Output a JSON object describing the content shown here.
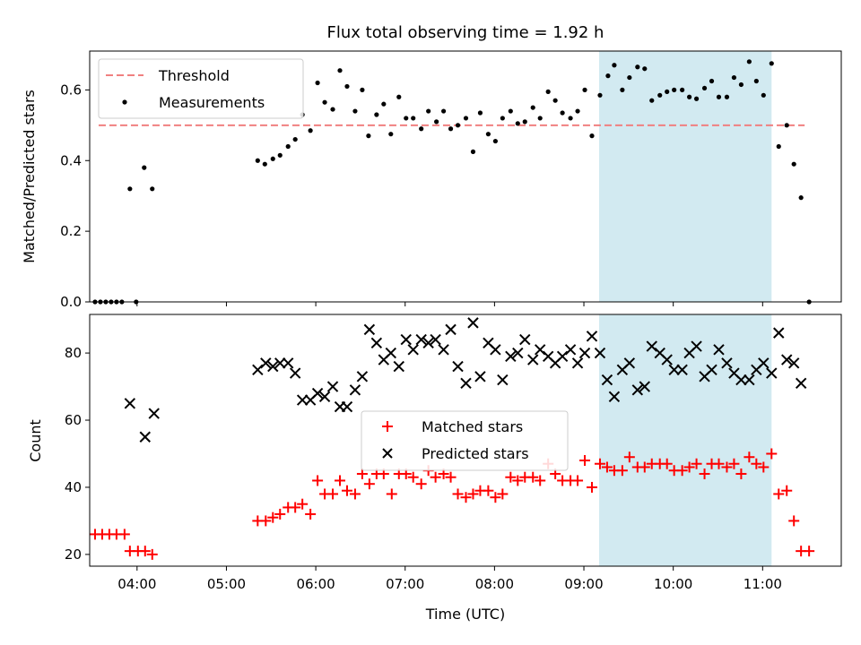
{
  "chart_data": [
    {
      "type": "scatter",
      "title": "Flux total observing time = 1.92 h",
      "ylabel": "Matched/Predicted stars",
      "ylim": [
        0,
        0.71
      ],
      "yticks": [
        0.0,
        0.2,
        0.4,
        0.6
      ],
      "ytick_labels": [
        "0.0",
        "0.2",
        "0.4",
        "0.6"
      ],
      "xlim": [
        3.47,
        11.88
      ],
      "shaded_region": {
        "x_start": 9.17,
        "x_end": 11.1,
        "color": "#add8e6"
      },
      "threshold": {
        "name": "Threshold",
        "y": 0.5,
        "x_start": 3.57,
        "x_end": 11.47,
        "color": "#f08080"
      },
      "legend_position": "top-left",
      "series": [
        {
          "name": "Measurements",
          "color": "#000000",
          "marker": "dot",
          "points": [
            [
              3.53,
              0.0
            ],
            [
              3.59,
              0.0
            ],
            [
              3.65,
              0.0
            ],
            [
              3.71,
              0.0
            ],
            [
              3.77,
              0.0
            ],
            [
              3.83,
              0.0
            ],
            [
              3.92,
              0.32
            ],
            [
              3.99,
              0.0
            ],
            [
              4.08,
              0.38
            ],
            [
              4.17,
              0.32
            ],
            [
              5.35,
              0.4
            ],
            [
              5.43,
              0.39
            ],
            [
              5.52,
              0.405
            ],
            [
              5.6,
              0.415
            ],
            [
              5.69,
              0.44
            ],
            [
              5.77,
              0.46
            ],
            [
              5.85,
              0.53
            ],
            [
              5.94,
              0.485
            ],
            [
              6.02,
              0.62
            ],
            [
              6.1,
              0.565
            ],
            [
              6.19,
              0.545
            ],
            [
              6.27,
              0.655
            ],
            [
              6.35,
              0.61
            ],
            [
              6.44,
              0.54
            ],
            [
              6.52,
              0.6
            ],
            [
              6.59,
              0.47
            ],
            [
              6.68,
              0.53
            ],
            [
              6.76,
              0.56
            ],
            [
              6.84,
              0.475
            ],
            [
              6.93,
              0.58
            ],
            [
              7.01,
              0.52
            ],
            [
              7.09,
              0.52
            ],
            [
              7.18,
              0.49
            ],
            [
              7.26,
              0.54
            ],
            [
              7.35,
              0.51
            ],
            [
              7.43,
              0.54
            ],
            [
              7.51,
              0.49
            ],
            [
              7.59,
              0.5
            ],
            [
              7.68,
              0.52
            ],
            [
              7.76,
              0.425
            ],
            [
              7.84,
              0.535
            ],
            [
              7.93,
              0.475
            ],
            [
              8.01,
              0.455
            ],
            [
              8.09,
              0.52
            ],
            [
              8.18,
              0.54
            ],
            [
              8.26,
              0.505
            ],
            [
              8.34,
              0.51
            ],
            [
              8.43,
              0.55
            ],
            [
              8.51,
              0.52
            ],
            [
              8.6,
              0.595
            ],
            [
              8.68,
              0.57
            ],
            [
              8.76,
              0.535
            ],
            [
              8.85,
              0.52
            ],
            [
              8.93,
              0.54
            ],
            [
              9.01,
              0.6
            ],
            [
              9.09,
              0.47
            ],
            [
              9.18,
              0.585
            ],
            [
              9.27,
              0.64
            ],
            [
              9.34,
              0.67
            ],
            [
              9.43,
              0.6
            ],
            [
              9.51,
              0.635
            ],
            [
              9.6,
              0.665
            ],
            [
              9.68,
              0.66
            ],
            [
              9.76,
              0.57
            ],
            [
              9.85,
              0.585
            ],
            [
              9.93,
              0.595
            ],
            [
              10.01,
              0.6
            ],
            [
              10.1,
              0.6
            ],
            [
              10.18,
              0.58
            ],
            [
              10.26,
              0.575
            ],
            [
              10.35,
              0.605
            ],
            [
              10.43,
              0.625
            ],
            [
              10.51,
              0.58
            ],
            [
              10.6,
              0.58
            ],
            [
              10.68,
              0.635
            ],
            [
              10.76,
              0.615
            ],
            [
              10.85,
              0.68
            ],
            [
              10.93,
              0.625
            ],
            [
              11.01,
              0.585
            ],
            [
              11.1,
              0.675
            ],
            [
              11.18,
              0.44
            ],
            [
              11.27,
              0.5
            ],
            [
              11.35,
              0.39
            ],
            [
              11.43,
              0.295
            ],
            [
              11.52,
              0.0
            ]
          ]
        }
      ]
    },
    {
      "type": "scatter",
      "xlabel": "Time (UTC)",
      "ylabel": "Count",
      "ylim": [
        16.5,
        91.5
      ],
      "yticks": [
        20,
        40,
        60,
        80
      ],
      "ytick_labels": [
        "20",
        "40",
        "60",
        "80"
      ],
      "xlim": [
        3.47,
        11.88
      ],
      "xticks": [
        4,
        5,
        6,
        7,
        8,
        9,
        10,
        11
      ],
      "xtick_labels": [
        "04:00",
        "05:00",
        "06:00",
        "07:00",
        "08:00",
        "09:00",
        "10:00",
        "11:00"
      ],
      "shaded_region": {
        "x_start": 9.17,
        "x_end": 11.1,
        "color": "#add8e6"
      },
      "legend_position": "center",
      "series": [
        {
          "name": "Matched stars",
          "color": "#ff0000",
          "marker": "plus",
          "points": [
            [
              3.53,
              26
            ],
            [
              3.61,
              26
            ],
            [
              3.69,
              26
            ],
            [
              3.77,
              26
            ],
            [
              3.86,
              26
            ],
            [
              3.92,
              21
            ],
            [
              4.01,
              21
            ],
            [
              4.09,
              21
            ],
            [
              4.17,
              20
            ],
            [
              5.35,
              30
            ],
            [
              5.44,
              30
            ],
            [
              5.52,
              31
            ],
            [
              5.6,
              32
            ],
            [
              5.69,
              34
            ],
            [
              5.77,
              34
            ],
            [
              5.85,
              35
            ],
            [
              5.94,
              32
            ],
            [
              6.02,
              42
            ],
            [
              6.1,
              38
            ],
            [
              6.19,
              38
            ],
            [
              6.27,
              42
            ],
            [
              6.35,
              39
            ],
            [
              6.44,
              38
            ],
            [
              6.52,
              44
            ],
            [
              6.6,
              41
            ],
            [
              6.68,
              44
            ],
            [
              6.76,
              44
            ],
            [
              6.85,
              38
            ],
            [
              6.93,
              44
            ],
            [
              7.01,
              44
            ],
            [
              7.09,
              43
            ],
            [
              7.18,
              41
            ],
            [
              7.26,
              45
            ],
            [
              7.34,
              43
            ],
            [
              7.43,
              44
            ],
            [
              7.51,
              43
            ],
            [
              7.59,
              38
            ],
            [
              7.68,
              37
            ],
            [
              7.76,
              38
            ],
            [
              7.84,
              39
            ],
            [
              7.93,
              39
            ],
            [
              8.01,
              37
            ],
            [
              8.09,
              38
            ],
            [
              8.18,
              43
            ],
            [
              8.26,
              42
            ],
            [
              8.34,
              43
            ],
            [
              8.43,
              43
            ],
            [
              8.51,
              42
            ],
            [
              8.6,
              47
            ],
            [
              8.68,
              44
            ],
            [
              8.76,
              42
            ],
            [
              8.85,
              42
            ],
            [
              8.93,
              42
            ],
            [
              9.01,
              48
            ],
            [
              9.09,
              40
            ],
            [
              9.18,
              47
            ],
            [
              9.26,
              46
            ],
            [
              9.34,
              45
            ],
            [
              9.43,
              45
            ],
            [
              9.51,
              49
            ],
            [
              9.6,
              46
            ],
            [
              9.68,
              46
            ],
            [
              9.76,
              47
            ],
            [
              9.85,
              47
            ],
            [
              9.93,
              47
            ],
            [
              10.01,
              45
            ],
            [
              10.1,
              45
            ],
            [
              10.18,
              46
            ],
            [
              10.26,
              47
            ],
            [
              10.35,
              44
            ],
            [
              10.43,
              47
            ],
            [
              10.51,
              47
            ],
            [
              10.6,
              46
            ],
            [
              10.68,
              47
            ],
            [
              10.76,
              44
            ],
            [
              10.85,
              49
            ],
            [
              10.93,
              47
            ],
            [
              11.01,
              46
            ],
            [
              11.1,
              50
            ],
            [
              11.18,
              38
            ],
            [
              11.27,
              39
            ],
            [
              11.35,
              30
            ],
            [
              11.43,
              21
            ],
            [
              11.52,
              21
            ]
          ]
        },
        {
          "name": "Predicted stars",
          "color": "#000000",
          "marker": "x",
          "points": [
            [
              3.92,
              65
            ],
            [
              4.09,
              55
            ],
            [
              4.19,
              62
            ],
            [
              5.35,
              75
            ],
            [
              5.44,
              77
            ],
            [
              5.52,
              76
            ],
            [
              5.6,
              77
            ],
            [
              5.69,
              77
            ],
            [
              5.77,
              74
            ],
            [
              5.85,
              66
            ],
            [
              5.94,
              66
            ],
            [
              6.02,
              68
            ],
            [
              6.1,
              67
            ],
            [
              6.19,
              70
            ],
            [
              6.27,
              64
            ],
            [
              6.35,
              64
            ],
            [
              6.44,
              69
            ],
            [
              6.52,
              73
            ],
            [
              6.6,
              87
            ],
            [
              6.68,
              83
            ],
            [
              6.76,
              78
            ],
            [
              6.84,
              80
            ],
            [
              6.93,
              76
            ],
            [
              7.01,
              84
            ],
            [
              7.09,
              81
            ],
            [
              7.18,
              84
            ],
            [
              7.26,
              83
            ],
            [
              7.34,
              84
            ],
            [
              7.43,
              81
            ],
            [
              7.51,
              87
            ],
            [
              7.59,
              76
            ],
            [
              7.68,
              71
            ],
            [
              7.76,
              89
            ],
            [
              7.84,
              73
            ],
            [
              7.93,
              83
            ],
            [
              8.01,
              81
            ],
            [
              8.09,
              72
            ],
            [
              8.18,
              79
            ],
            [
              8.26,
              80
            ],
            [
              8.34,
              84
            ],
            [
              8.43,
              78
            ],
            [
              8.51,
              81
            ],
            [
              8.6,
              79
            ],
            [
              8.68,
              77
            ],
            [
              8.76,
              79
            ],
            [
              8.85,
              81
            ],
            [
              8.93,
              77
            ],
            [
              9.01,
              80
            ],
            [
              9.09,
              85
            ],
            [
              9.18,
              80
            ],
            [
              9.26,
              72
            ],
            [
              9.34,
              67
            ],
            [
              9.43,
              75
            ],
            [
              9.51,
              77
            ],
            [
              9.6,
              69
            ],
            [
              9.68,
              70
            ],
            [
              9.76,
              82
            ],
            [
              9.85,
              80
            ],
            [
              9.93,
              78
            ],
            [
              10.01,
              75
            ],
            [
              10.1,
              75
            ],
            [
              10.18,
              80
            ],
            [
              10.26,
              82
            ],
            [
              10.35,
              73
            ],
            [
              10.43,
              75
            ],
            [
              10.51,
              81
            ],
            [
              10.6,
              77
            ],
            [
              10.68,
              74
            ],
            [
              10.76,
              72
            ],
            [
              10.85,
              72
            ],
            [
              10.93,
              75
            ],
            [
              11.01,
              77
            ],
            [
              11.1,
              74
            ],
            [
              11.18,
              86
            ],
            [
              11.27,
              78
            ],
            [
              11.35,
              77
            ],
            [
              11.43,
              71
            ]
          ]
        }
      ]
    }
  ]
}
